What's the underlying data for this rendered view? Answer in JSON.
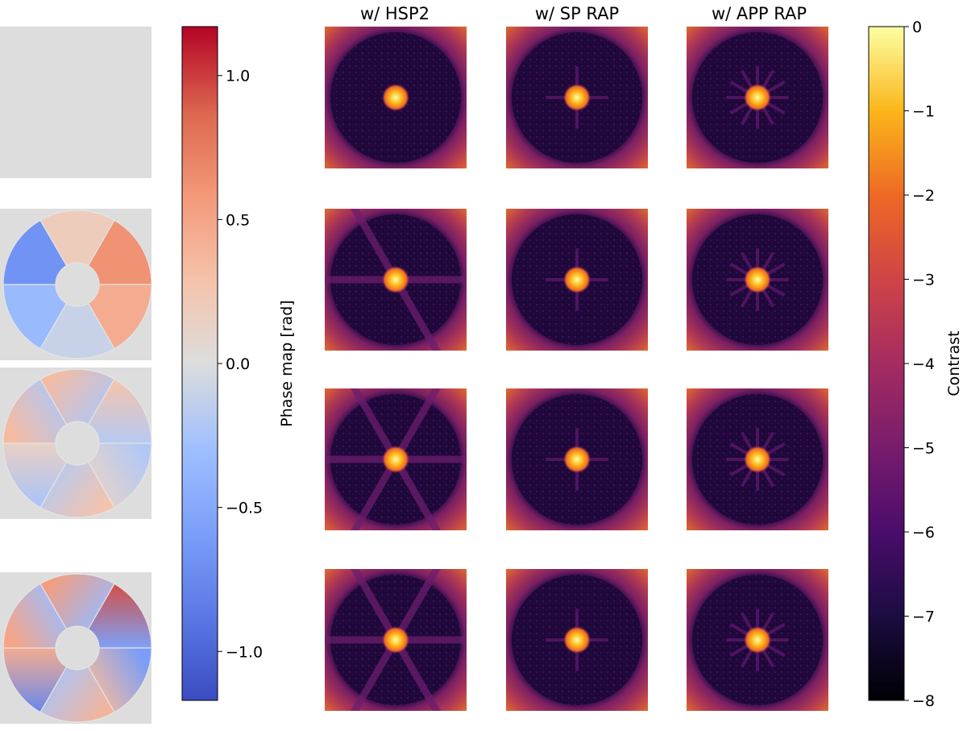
{
  "column_titles": [
    "w/ HSP2",
    "w/ SP RAP",
    "w/ APP RAP"
  ],
  "phase_colorbar": {
    "label": "Phase map [rad]",
    "range": [
      -1.17,
      1.17
    ],
    "ticks": [
      {
        "value": 1.0,
        "label": "1.0"
      },
      {
        "value": 0.5,
        "label": "0.5"
      },
      {
        "value": 0.0,
        "label": "0.0"
      },
      {
        "value": -0.5,
        "label": "−0.5"
      },
      {
        "value": -1.0,
        "label": "−1.0"
      }
    ],
    "colormap": "coolwarm",
    "colors": {
      "low": "#3b4cc0",
      "mid": "#dddddd",
      "high": "#b40426"
    }
  },
  "contrast_colorbar": {
    "label": "Contrast",
    "range": [
      -8,
      0
    ],
    "ticks": [
      {
        "value": 0,
        "label": "0"
      },
      {
        "value": -1,
        "label": "−1"
      },
      {
        "value": -2,
        "label": "−2"
      },
      {
        "value": -3,
        "label": "−3"
      },
      {
        "value": -4,
        "label": "−4"
      },
      {
        "value": -5,
        "label": "−5"
      },
      {
        "value": -6,
        "label": "−6"
      },
      {
        "value": -7,
        "label": "−7"
      },
      {
        "value": -8,
        "label": "−8"
      }
    ],
    "colormap": "inferno"
  },
  "phase_maps": [
    {
      "segment_values": [
        0,
        0,
        0,
        0,
        0,
        0
      ],
      "kind": "flat"
    },
    {
      "segment_values": [
        0.2,
        0.62,
        0.45,
        -0.1,
        -0.33,
        -0.67
      ],
      "kind": "piston"
    },
    {
      "segment_values": [
        0.35,
        0.3,
        -0.2,
        0.3,
        -0.25,
        0.35
      ],
      "kind": "tip-tilt"
    },
    {
      "segment_values": [
        0.55,
        0.95,
        -0.6,
        0.4,
        -0.75,
        0.5
      ],
      "kind": "mixed"
    }
  ],
  "psf_rows": [
    [
      {
        "spikes": [],
        "halo": "low"
      },
      {
        "spikes": [
          0,
          90
        ],
        "halo": "low"
      },
      {
        "spikes": [
          0,
          30,
          60,
          90,
          120,
          150
        ],
        "halo": "low"
      }
    ],
    [
      {
        "spikes": [
          60,
          0
        ],
        "halo": "strong-band"
      },
      {
        "spikes": [
          0,
          90
        ],
        "halo": "low"
      },
      {
        "spikes": [
          0,
          30,
          60,
          90,
          120,
          150
        ],
        "halo": "low"
      }
    ],
    [
      {
        "spikes": [
          60,
          120,
          0
        ],
        "halo": "strong"
      },
      {
        "spikes": [
          0,
          90
        ],
        "halo": "low"
      },
      {
        "spikes": [
          0,
          30,
          60,
          90,
          120,
          150
        ],
        "halo": "low"
      }
    ],
    [
      {
        "spikes": [
          60,
          120,
          0
        ],
        "halo": "strong"
      },
      {
        "spikes": [
          0,
          90
        ],
        "halo": "low"
      },
      {
        "spikes": [
          0,
          30,
          60,
          90,
          120,
          150
        ],
        "halo": "low"
      }
    ]
  ]
}
